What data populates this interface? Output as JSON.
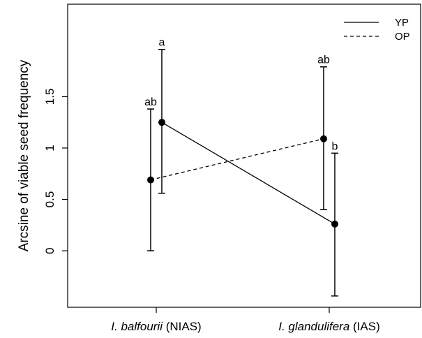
{
  "chart_data": {
    "type": "line",
    "title": "",
    "xlabel": "",
    "ylabel": "Arcsine of viable seed frequency",
    "categories": [
      {
        "species": "I. balfourii",
        "suffix": " (NIAS)"
      },
      {
        "species": "I. glandulifera",
        "suffix": " (IAS)"
      }
    ],
    "y_ticks": [
      0,
      0.5,
      1,
      1.5
    ],
    "y_tick_labels": [
      "0",
      "0.5",
      "1",
      "1.5"
    ],
    "ylim": [
      -0.55,
      2.4
    ],
    "legend_position": "top-right",
    "grid": false,
    "series": [
      {
        "name": "YP",
        "line_style": "solid",
        "values": [
          1.25,
          0.26
        ],
        "err_low": [
          0.56,
          -0.44
        ],
        "err_high": [
          1.96,
          0.95
        ],
        "labels": [
          "a",
          "b"
        ]
      },
      {
        "name": "OP",
        "line_style": "dashed",
        "values": [
          0.69,
          1.09
        ],
        "err_low": [
          0.0,
          0.4
        ],
        "err_high": [
          1.38,
          1.79
        ],
        "labels": [
          "ab",
          "ab"
        ]
      }
    ]
  }
}
